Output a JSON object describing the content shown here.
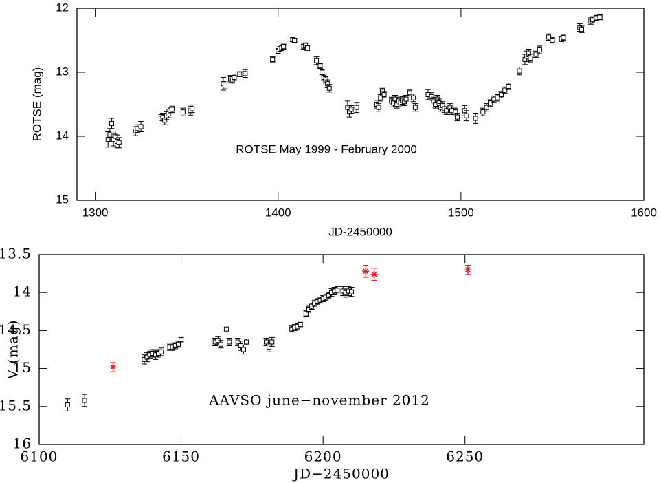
{
  "chart_data": [
    {
      "type": "scatter",
      "annotation": "ROTSE May 1999 - February 2000",
      "xlabel": "JD-2450000",
      "ylabel": "ROTSE (mag)",
      "xlim": [
        1290,
        1600
      ],
      "ylim": [
        15,
        12
      ],
      "xticks": [
        1300,
        1400,
        1500,
        1600
      ],
      "yticks": [
        12,
        13,
        14,
        15
      ],
      "series": [
        {
          "color": "#000000",
          "marker": "square",
          "x": [
            1307,
            1308,
            1309,
            1310,
            1311,
            1312,
            1313,
            1322,
            1323,
            1325,
            1336,
            1337,
            1338,
            1339,
            1340,
            1341,
            1342,
            1348,
            1352,
            1353,
            1370,
            1371,
            1374,
            1375,
            1376,
            1379,
            1382,
            1397,
            1400,
            1401,
            1402,
            1403,
            1408,
            1409,
            1414,
            1415,
            1416,
            1421,
            1423,
            1424,
            1425,
            1426,
            1427,
            1428,
            1438,
            1439,
            1440,
            1443,
            1454,
            1455,
            1456,
            1457,
            1458,
            1462,
            1463,
            1464,
            1465,
            1466,
            1467,
            1468,
            1469,
            1470,
            1472,
            1474,
            1475,
            1482,
            1484,
            1485,
            1486,
            1487,
            1488,
            1489,
            1490,
            1491,
            1492,
            1494,
            1495,
            1497,
            1498,
            1502,
            1503,
            1508,
            1512,
            1514,
            1516,
            1518,
            1520,
            1522,
            1524,
            1526,
            1532,
            1535,
            1536,
            1537,
            1538,
            1541,
            1543,
            1548,
            1550,
            1555,
            1556,
            1565,
            1566,
            1571,
            1572,
            1574,
            1576
          ],
          "values": [
            14.05,
            13.98,
            13.8,
            14.05,
            14.0,
            14.08,
            14.1,
            13.92,
            13.88,
            13.85,
            13.72,
            13.7,
            13.75,
            13.68,
            13.65,
            13.6,
            13.58,
            13.62,
            13.6,
            13.57,
            13.18,
            13.2,
            13.1,
            13.12,
            13.08,
            13.03,
            13.02,
            12.8,
            12.67,
            12.64,
            12.62,
            12.6,
            12.49,
            12.5,
            12.6,
            12.58,
            12.62,
            12.82,
            12.9,
            13.0,
            13.08,
            13.12,
            13.18,
            13.25,
            13.55,
            13.62,
            13.58,
            13.55,
            13.5,
            13.55,
            13.4,
            13.3,
            13.35,
            13.45,
            13.48,
            13.42,
            13.5,
            13.45,
            13.48,
            13.44,
            13.46,
            13.42,
            13.32,
            13.4,
            13.55,
            13.35,
            13.38,
            13.45,
            13.5,
            13.42,
            13.48,
            13.55,
            13.52,
            13.57,
            13.6,
            13.55,
            13.6,
            13.62,
            13.7,
            13.6,
            13.68,
            13.72,
            13.62,
            13.55,
            13.48,
            13.42,
            13.4,
            13.35,
            13.28,
            13.22,
            12.98,
            12.8,
            12.75,
            12.7,
            12.78,
            12.72,
            12.65,
            12.45,
            12.5,
            12.48,
            12.46,
            12.3,
            12.33,
            12.2,
            12.18,
            12.15,
            12.14
          ],
          "errors": [
            0.12,
            0.1,
            0.08,
            0.1,
            0.08,
            0.1,
            0.08,
            0.07,
            0.06,
            0.08,
            0.06,
            0.06,
            0.07,
            0.06,
            0.06,
            0.05,
            0.05,
            0.06,
            0.07,
            0.06,
            0.1,
            0.06,
            0.05,
            0.05,
            0.05,
            0.04,
            0.06,
            0.04,
            0.04,
            0.04,
            0.04,
            0.04,
            0.03,
            0.03,
            0.04,
            0.04,
            0.04,
            0.06,
            0.04,
            0.04,
            0.05,
            0.05,
            0.06,
            0.06,
            0.1,
            0.08,
            0.06,
            0.08,
            0.06,
            0.06,
            0.05,
            0.05,
            0.05,
            0.06,
            0.06,
            0.06,
            0.06,
            0.06,
            0.06,
            0.06,
            0.06,
            0.06,
            0.05,
            0.06,
            0.06,
            0.08,
            0.06,
            0.06,
            0.06,
            0.06,
            0.06,
            0.06,
            0.06,
            0.06,
            0.06,
            0.06,
            0.06,
            0.06,
            0.06,
            0.08,
            0.08,
            0.08,
            0.06,
            0.06,
            0.05,
            0.05,
            0.05,
            0.05,
            0.05,
            0.05,
            0.06,
            0.08,
            0.08,
            0.06,
            0.06,
            0.05,
            0.06,
            0.05,
            0.04,
            0.04,
            0.04,
            0.06,
            0.05,
            0.05,
            0.05,
            0.04,
            0.04
          ]
        }
      ]
    },
    {
      "type": "scatter",
      "annotation": "AAVSO june−november 2012",
      "xlabel": "JD−2450000",
      "ylabel": "V (mag)",
      "xlim": [
        6100,
        6313
      ],
      "ylim": [
        16,
        13.5
      ],
      "xticks": [
        6100,
        6150,
        6200,
        6250
      ],
      "yticks": [
        13.5,
        14,
        14.5,
        15,
        15.5,
        16
      ],
      "series": [
        {
          "color": "#000000",
          "marker": "square",
          "x": [
            6110,
            6116,
            6137,
            6138,
            6139,
            6140,
            6141,
            6142,
            6143,
            6146,
            6147,
            6148,
            6149,
            6150,
            6162,
            6163,
            6164,
            6166,
            6167,
            6170,
            6171,
            6172,
            6173,
            6180,
            6181,
            6182,
            6189,
            6190,
            6191,
            6192,
            6194,
            6195,
            6196,
            6197,
            6198,
            6199,
            6200,
            6201,
            6202,
            6203,
            6204,
            6205,
            6207,
            6208,
            6209,
            6210
          ],
          "values": [
            15.48,
            15.42,
            14.88,
            14.85,
            14.82,
            14.8,
            14.82,
            14.8,
            14.78,
            14.72,
            14.72,
            14.7,
            14.68,
            14.62,
            14.65,
            14.63,
            14.68,
            14.48,
            14.65,
            14.65,
            14.7,
            14.75,
            14.65,
            14.65,
            14.72,
            14.65,
            14.48,
            14.46,
            14.45,
            14.42,
            14.28,
            14.22,
            14.18,
            14.14,
            14.12,
            14.1,
            14.08,
            14.06,
            14.04,
            14.0,
            13.98,
            13.97,
            13.98,
            14.0,
            13.98,
            13.99
          ],
          "errors": [
            0.08,
            0.08,
            0.06,
            0.06,
            0.05,
            0.05,
            0.06,
            0.05,
            0.05,
            0.04,
            0.04,
            0.04,
            0.04,
            0.03,
            0.05,
            0.05,
            0.05,
            0.02,
            0.05,
            0.05,
            0.06,
            0.06,
            0.04,
            0.05,
            0.06,
            0.06,
            0.04,
            0.04,
            0.04,
            0.03,
            0.04,
            0.04,
            0.04,
            0.04,
            0.04,
            0.04,
            0.04,
            0.04,
            0.04,
            0.05,
            0.05,
            0.05,
            0.06,
            0.06,
            0.06,
            0.06
          ]
        },
        {
          "color": "#e8202a",
          "marker": "star",
          "x": [
            6126,
            6215,
            6218,
            6251
          ],
          "values": [
            14.98,
            13.72,
            13.76,
            13.7
          ],
          "errors": [
            0.06,
            0.08,
            0.08,
            0.06
          ]
        }
      ]
    }
  ]
}
